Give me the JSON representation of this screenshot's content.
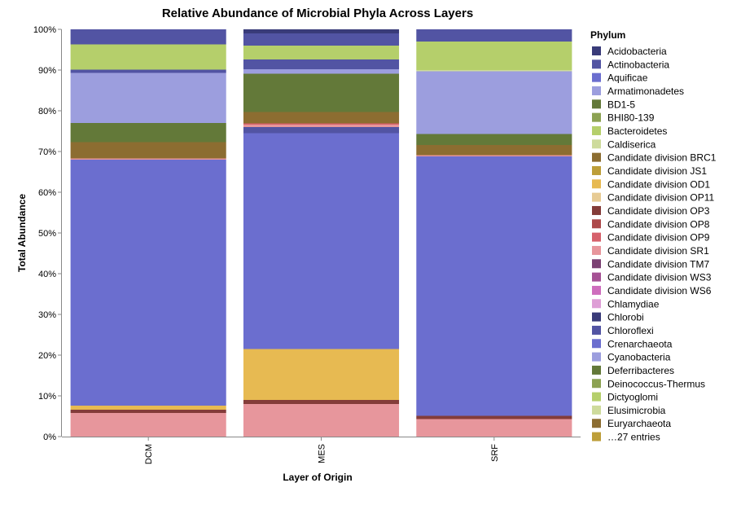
{
  "chart_data": {
    "type": "bar",
    "stacked": true,
    "normalized": true,
    "title": "Relative Abundance of Microbial Phyla Across Layers",
    "xlabel": "Layer of Origin",
    "ylabel": "Total Abundance",
    "ylim": [
      0,
      100
    ],
    "y_ticks": [
      "0%",
      "10%",
      "20%",
      "30%",
      "40%",
      "50%",
      "60%",
      "70%",
      "80%",
      "90%",
      "100%"
    ],
    "categories": [
      "DCM",
      "MES",
      "SRF"
    ],
    "legend": {
      "title": "Phylum",
      "placement": "right",
      "items": [
        {
          "name": "Acidobacteria",
          "color": "#393b79"
        },
        {
          "name": "Actinobacteria",
          "color": "#5254a3"
        },
        {
          "name": "Aquificae",
          "color": "#6b6ecf"
        },
        {
          "name": "Armatimonadetes",
          "color": "#9c9ede"
        },
        {
          "name": "BD1-5",
          "color": "#637939"
        },
        {
          "name": "BHI80-139",
          "color": "#8ca252"
        },
        {
          "name": "Bacteroidetes",
          "color": "#b5cf6b"
        },
        {
          "name": "Caldiserica",
          "color": "#cedb9c"
        },
        {
          "name": "Candidate division BRC1",
          "color": "#8c6d31"
        },
        {
          "name": "Candidate division JS1",
          "color": "#bd9e39"
        },
        {
          "name": "Candidate division OD1",
          "color": "#e7ba52"
        },
        {
          "name": "Candidate division OP11",
          "color": "#e7cb94"
        },
        {
          "name": "Candidate division OP3",
          "color": "#843c39"
        },
        {
          "name": "Candidate division OP8",
          "color": "#ad494a"
        },
        {
          "name": "Candidate division OP9",
          "color": "#d6616b"
        },
        {
          "name": "Candidate division SR1",
          "color": "#e7969c"
        },
        {
          "name": "Candidate division TM7",
          "color": "#7b4173"
        },
        {
          "name": "Candidate division WS3",
          "color": "#a55194"
        },
        {
          "name": "Candidate division WS6",
          "color": "#ce6dbd"
        },
        {
          "name": "Chlamydiae",
          "color": "#de9ed6"
        },
        {
          "name": "Chlorobi",
          "color": "#393b79"
        },
        {
          "name": "Chloroflexi",
          "color": "#5254a3"
        },
        {
          "name": "Crenarchaeota",
          "color": "#6b6ecf"
        },
        {
          "name": "Cyanobacteria",
          "color": "#9c9ede"
        },
        {
          "name": "Deferribacteres",
          "color": "#637939"
        },
        {
          "name": "Deinococcus-Thermus",
          "color": "#8ca252"
        },
        {
          "name": "Dictyoglomi",
          "color": "#b5cf6b"
        },
        {
          "name": "Elusimicrobia",
          "color": "#cedb9c"
        },
        {
          "name": "Euryarchaeota",
          "color": "#8c6d31"
        },
        {
          "name": "…27 entries",
          "color": "#bd9e39"
        }
      ]
    },
    "series": [
      {
        "category": "DCM",
        "segments": [
          {
            "color": "#e7969c",
            "value": 5.8
          },
          {
            "color": "#843c39",
            "value": 0.8
          },
          {
            "color": "#e7ba52",
            "value": 1.0
          },
          {
            "color": "#6b6ecf",
            "value": 60.4
          },
          {
            "color": "#e7969c",
            "value": 0.3
          },
          {
            "color": "#8c6d31",
            "value": 4.0
          },
          {
            "color": "#637939",
            "value": 4.7
          },
          {
            "color": "#9c9ede",
            "value": 12.3
          },
          {
            "color": "#5254a3",
            "value": 0.8
          },
          {
            "color": "#b5cf6b",
            "value": 6.2
          },
          {
            "color": "#5254a3",
            "value": 3.7
          }
        ]
      },
      {
        "category": "MES",
        "segments": [
          {
            "color": "#e7969c",
            "value": 8.0
          },
          {
            "color": "#843c39",
            "value": 1.0
          },
          {
            "color": "#e7ba52",
            "value": 12.5
          },
          {
            "color": "#6b6ecf",
            "value": 53.0
          },
          {
            "color": "#5254a3",
            "value": 1.5
          },
          {
            "color": "#e7969c",
            "value": 0.6
          },
          {
            "color": "#d6616b",
            "value": 0.3
          },
          {
            "color": "#8c6d31",
            "value": 2.8
          },
          {
            "color": "#637939",
            "value": 9.4
          },
          {
            "color": "#9c9ede",
            "value": 1.1
          },
          {
            "color": "#5254a3",
            "value": 2.4
          },
          {
            "color": "#b5cf6b",
            "value": 3.4
          },
          {
            "color": "#5254a3",
            "value": 3.0
          },
          {
            "color": "#393b79",
            "value": 1.0
          }
        ]
      },
      {
        "category": "SRF",
        "segments": [
          {
            "color": "#e7969c",
            "value": 4.3
          },
          {
            "color": "#843c39",
            "value": 0.8
          },
          {
            "color": "#6b6ecf",
            "value": 63.7
          },
          {
            "color": "#e7969c",
            "value": 0.3
          },
          {
            "color": "#8c6d31",
            "value": 2.5
          },
          {
            "color": "#637939",
            "value": 2.7
          },
          {
            "color": "#9c9ede",
            "value": 15.4
          },
          {
            "color": "#cedb9c",
            "value": 0.3
          },
          {
            "color": "#b5cf6b",
            "value": 7.0
          },
          {
            "color": "#5254a3",
            "value": 3.0
          }
        ]
      }
    ]
  }
}
